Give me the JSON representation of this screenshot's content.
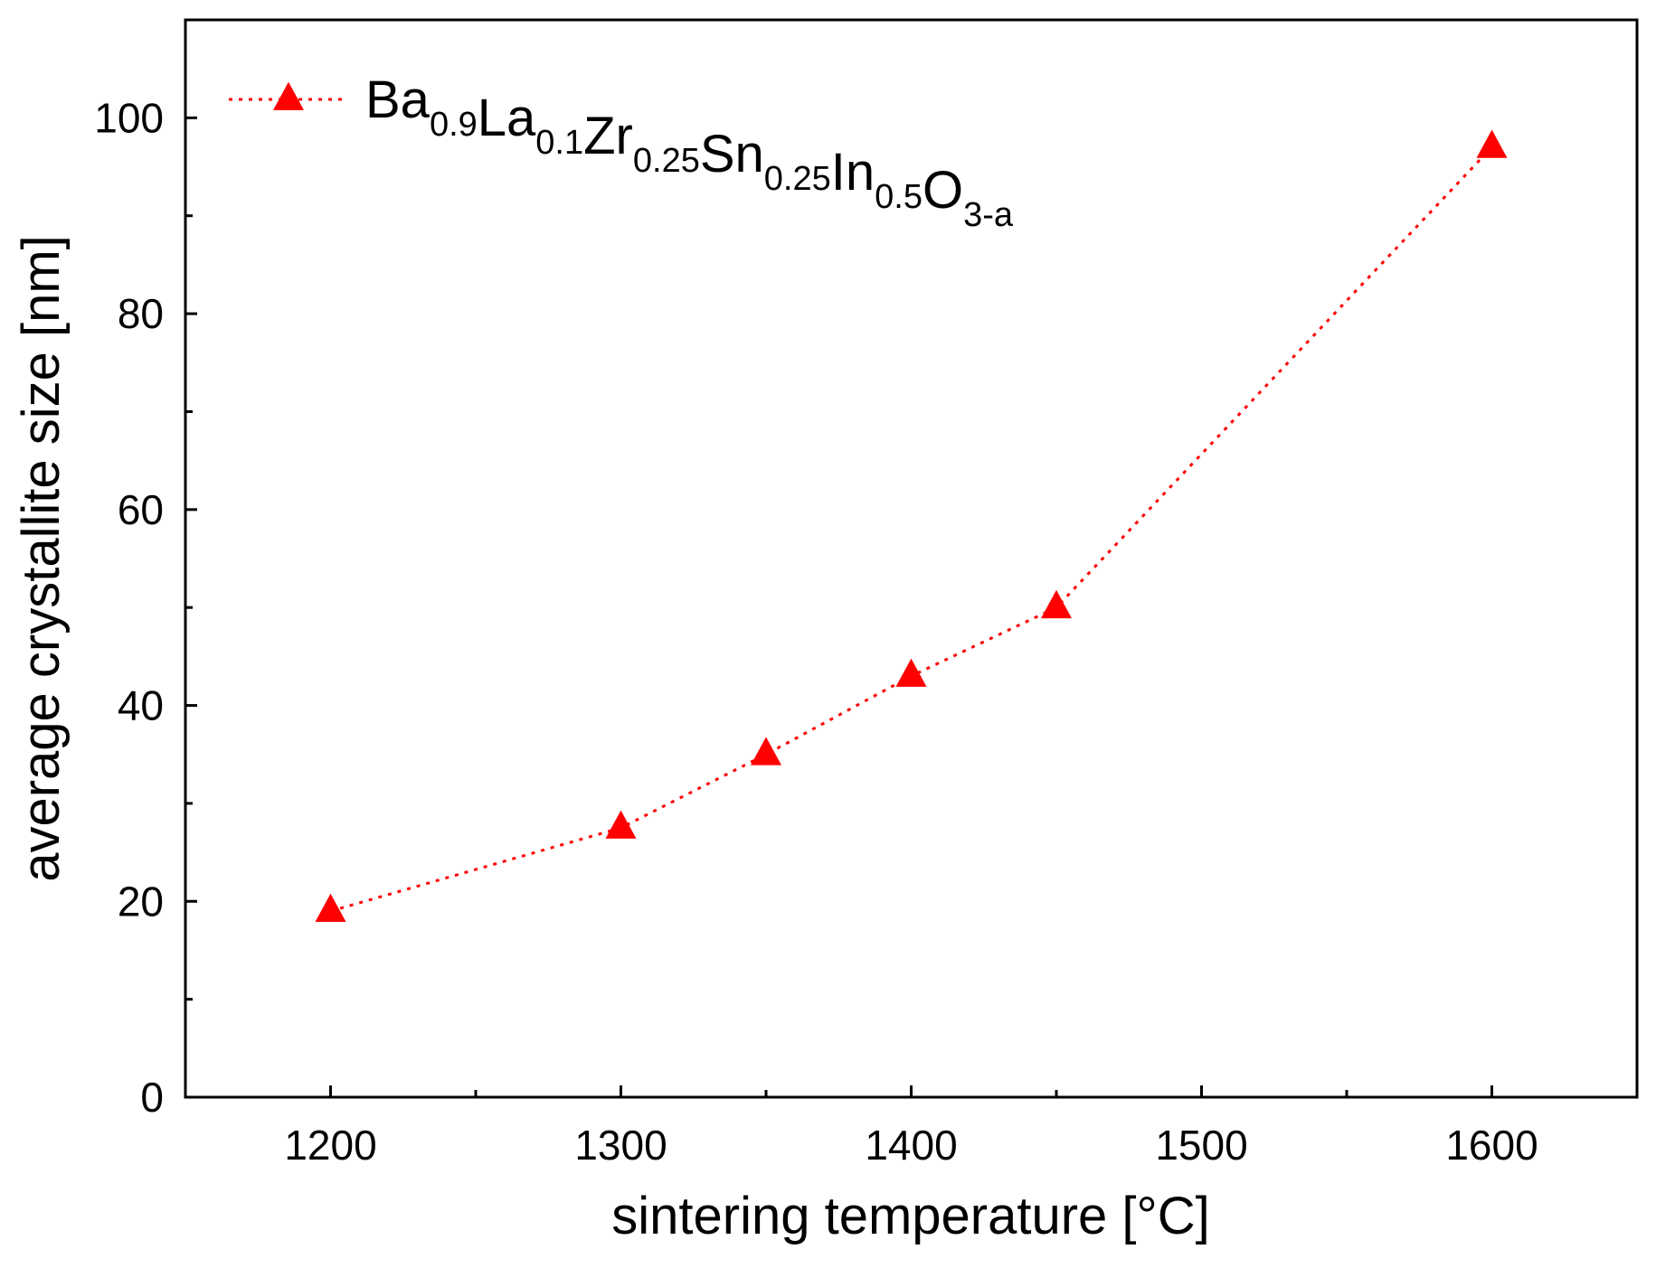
{
  "chart_data": {
    "type": "line",
    "title": "",
    "xlabel": "sintering temperature [°C]",
    "ylabel": "average crystallite size [nm]",
    "xlim": [
      1150,
      1650
    ],
    "ylim": [
      0,
      110
    ],
    "x_ticks": [
      1200,
      1300,
      1400,
      1500,
      1600
    ],
    "x_minor_ticks": [
      1250,
      1350,
      1450,
      1550
    ],
    "y_ticks": [
      0,
      20,
      40,
      60,
      80,
      100
    ],
    "y_minor_ticks": [
      10,
      30,
      50,
      70,
      90
    ],
    "grid": false,
    "legend_position": "top-left",
    "series": [
      {
        "name": "Ba0.9La0.1Zr0.25Sn0.25In0.5O3-a",
        "legend_parts": [
          {
            "text": "Ba",
            "sub": "0.9"
          },
          {
            "text": "La",
            "sub": "0.1"
          },
          {
            "text": "Zr",
            "sub": "0.25"
          },
          {
            "text": "Sn",
            "sub": "0.25"
          },
          {
            "text": "In",
            "sub": "0.5"
          },
          {
            "text": "O",
            "sub": "3-a"
          }
        ],
        "color": "#ff0000",
        "marker": "triangle",
        "line_style": "dotted",
        "x": [
          1200,
          1300,
          1350,
          1400,
          1450,
          1600
        ],
        "y": [
          19,
          27.5,
          35,
          43,
          50,
          97
        ]
      }
    ]
  }
}
